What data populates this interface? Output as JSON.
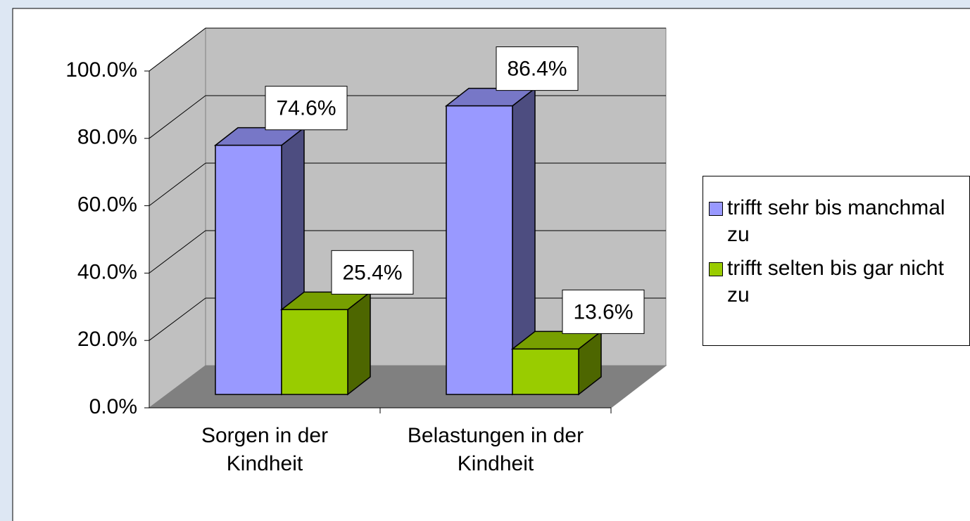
{
  "chart_data": {
    "type": "bar3d",
    "categories": [
      "Sorgen in der Kindheit",
      "Belastungen in der Kindheit"
    ],
    "series": [
      {
        "name": "trifft sehr bis manchmal zu",
        "color": "#9999ff",
        "values": [
          74.6,
          86.4
        ],
        "value_labels": [
          "74.6%",
          "86.4%"
        ]
      },
      {
        "name": "trifft selten bis gar nicht zu",
        "color": "#99cc00",
        "values": [
          25.4,
          13.6
        ],
        "value_labels": [
          "25.4%",
          "13.6%"
        ]
      }
    ],
    "ylim": [
      0,
      100
    ],
    "yticks": [
      {
        "value": 0,
        "label": "0.0%"
      },
      {
        "value": 20,
        "label": "20.0%"
      },
      {
        "value": 40,
        "label": "40.0%"
      },
      {
        "value": 60,
        "label": "60.0%"
      },
      {
        "value": 80,
        "label": "80.0%"
      },
      {
        "value": 100,
        "label": "100.0%"
      }
    ],
    "grid": true,
    "legend": "right"
  }
}
